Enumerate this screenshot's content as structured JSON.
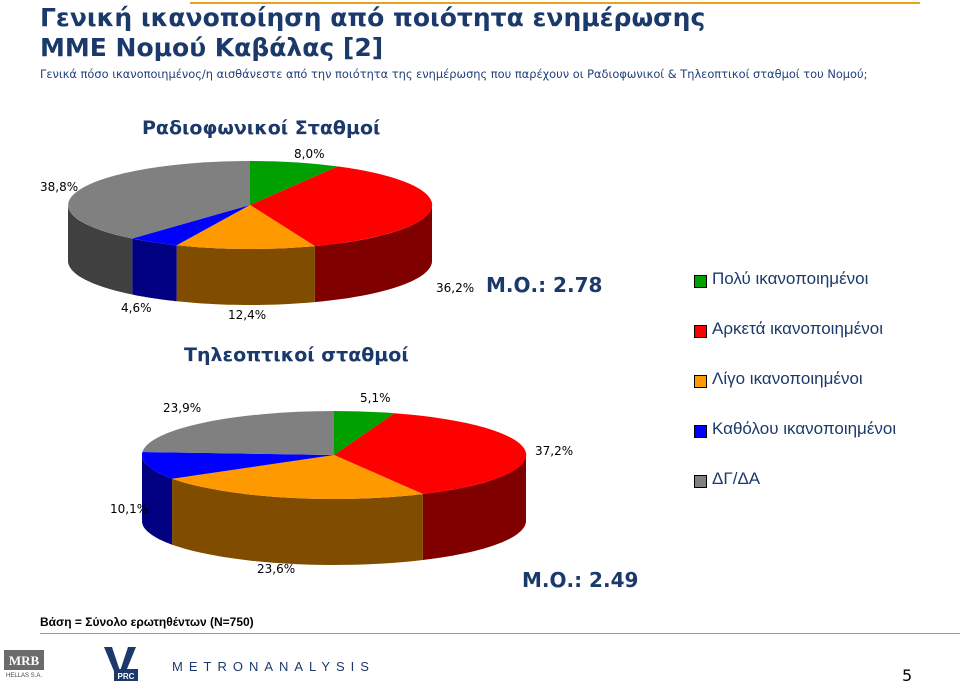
{
  "header": {
    "title_line1": "Γενική ικανοποίηση από ποιότητα ενημέρωσης",
    "title_line2": "ΜΜΕ Νομού Καβάλας [2]",
    "subtitle": "Γενικά πόσο ικανοποιημένος/η αισθάνεστε από την ποιότητα της ενημέρωσης που παρέχουν οι Ραδιοφωνικοί & Τηλεοπτικοί σταθμοί του Νομού;"
  },
  "colors": {
    "title": "#1b3a6b",
    "accent_line": "#e8a31c",
    "very": "#00a000",
    "fairly": "#ff0000",
    "little": "#ff9900",
    "not_at_all": "#0000ff",
    "dk_na": "#808080"
  },
  "legend": {
    "items": [
      {
        "label": "Πολύ ικανοποιημένοι",
        "color": "#00a000"
      },
      {
        "label": "Αρκετά ικανοποιημένοι",
        "color": "#ff0000"
      },
      {
        "label": "Λίγο ικανοποιημένοι",
        "color": "#ff9900"
      },
      {
        "label": "Καθόλου ικανοποιημένοι",
        "color": "#0000ff"
      },
      {
        "label": "ΔΓ/ΔΑ",
        "color": "#808080"
      }
    ]
  },
  "chart_data": [
    {
      "type": "pie",
      "title": "Ραδιοφωνικοί Σταθμοί",
      "categories": [
        "Πολύ ικανοποιημένοι",
        "Αρκετά ικανοποιημένοι",
        "Λίγο ικανοποιημένοι",
        "Καθόλου ικανοποιημένοι",
        "ΔΓ/ΔΑ"
      ],
      "values": [
        8.0,
        36.2,
        12.4,
        4.6,
        38.8
      ],
      "labels": [
        "8,0%",
        "36,2%",
        "12,4%",
        "4,6%",
        "38,8%"
      ],
      "mean_label": "Μ.Ο.: 2.78",
      "style": "3d"
    },
    {
      "type": "pie",
      "title": "Τηλεοπτικοί σταθμοί",
      "categories": [
        "Πολύ ικανοποιημένοι",
        "Αρκετά ικανοποιημένοι",
        "Λίγο ικανοποιημένοι",
        "Καθόλου ικανοποιημένοι",
        "ΔΓ/ΔΑ"
      ],
      "values": [
        5.1,
        37.2,
        23.6,
        10.1,
        23.9
      ],
      "labels": [
        "5,1%",
        "37,2%",
        "23,6%",
        "10,1%",
        "23,9%"
      ],
      "mean_label": "Μ.Ο.: 2.49",
      "style": "3d"
    }
  ],
  "footer": {
    "base_note": "Βάση = Σύνολο ερωτηθέντων (N=750)",
    "page_number": "5",
    "logo_mrb": "MRB HELLAS S.A.",
    "logo_vprc": "VPRC",
    "logo_metron": "METRONANALYSIS"
  }
}
